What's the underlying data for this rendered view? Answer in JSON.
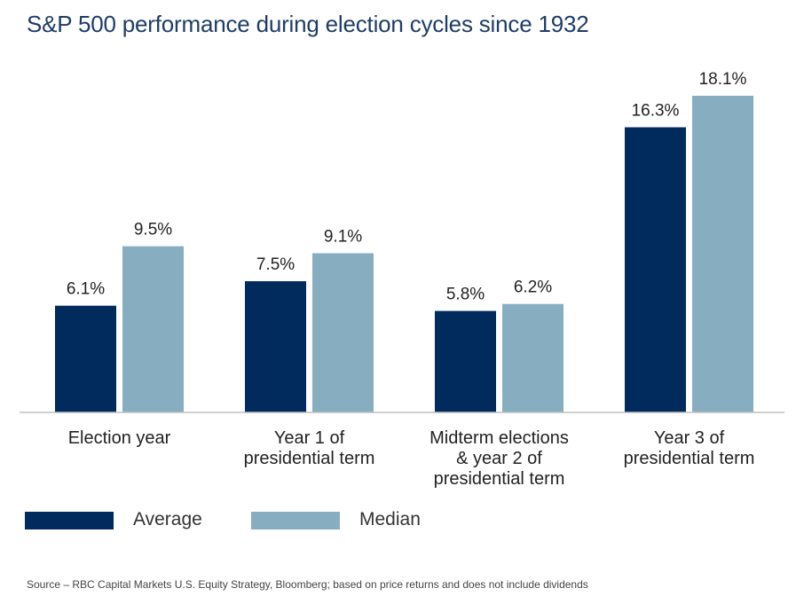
{
  "title": "S&P 500 performance during election cycles since 1932",
  "source": "Source – RBC Capital Markets U.S. Equity Strategy, Bloomberg; based on price returns and does not include dividends",
  "colors": {
    "average": "#002b5c",
    "median": "#86aec0",
    "title": "#1f3d67",
    "axis": "#bfbfbf"
  },
  "chart_data": {
    "type": "bar",
    "categories": [
      [
        "Election year"
      ],
      [
        "Year 1 of",
        "presidential term"
      ],
      [
        "Midterm elections",
        "& year 2 of",
        "presidential term"
      ],
      [
        "Year 3 of",
        "presidential term"
      ]
    ],
    "series": [
      {
        "name": "Average",
        "values": [
          6.1,
          7.5,
          5.8,
          16.3
        ],
        "labels": [
          "6.1%",
          "7.5%",
          "5.8%",
          "16.3%"
        ]
      },
      {
        "name": "Median",
        "values": [
          9.5,
          9.1,
          6.2,
          18.1
        ],
        "labels": [
          "9.5%",
          "9.1%",
          "6.2%",
          "18.1%"
        ]
      }
    ],
    "ylim": [
      0,
      18.1
    ],
    "grid": false,
    "legend_position": "bottom-left"
  }
}
